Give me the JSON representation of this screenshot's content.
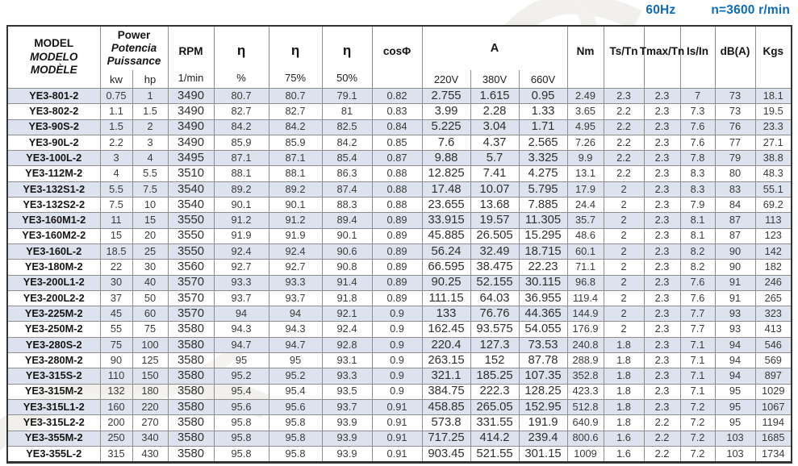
{
  "meta": {
    "frequency": "60Hz",
    "speed": "n=3600 r/min"
  },
  "colors": {
    "accent_blue": "#0b6bb7",
    "row_stripe": "#dde3ee",
    "grid_line": "#8e8e8e",
    "outer_border": "#333333"
  },
  "table": {
    "header": {
      "model_lines": [
        "MODEL",
        "MODELO",
        "MODÈLE"
      ],
      "power_lines": [
        "Power",
        "Potencia",
        "Puissance"
      ],
      "power_subs": [
        "kw",
        "hp"
      ],
      "rpm_title": "RPM",
      "rpm_sub": "1/min",
      "eta1_title": "η",
      "eta1_sub": "%",
      "eta2_title": "η",
      "eta2_sub": "75%",
      "eta3_title": "η",
      "eta3_sub": "50%",
      "cos_phi": "cosΦ",
      "current_title": "A",
      "current_subs": [
        "220V",
        "380V",
        "660V"
      ],
      "torque": "Nm",
      "ts_tn": "Ts/Tn",
      "tmax_tn": "Tmax/Tn",
      "is_in": "Is/In",
      "noise": "dB(A)",
      "weight": "Kgs"
    },
    "columns": [
      "model",
      "kw",
      "hp",
      "rpm",
      "eta_100",
      "eta_75",
      "eta_50",
      "cos_phi",
      "a_220v",
      "a_380v",
      "a_660v",
      "nm",
      "ts_tn",
      "tmax_tn",
      "is_in",
      "dba",
      "kgs"
    ],
    "rows": [
      [
        "YE3-801-2",
        "0.75",
        "1",
        "3490",
        "80.7",
        "80.7",
        "79.1",
        "0.82",
        "2.755",
        "1.615",
        "0.95",
        "2.49",
        "2.3",
        "2.3",
        "7",
        "73",
        "18.1"
      ],
      [
        "YE3-802-2",
        "1.1",
        "1.5",
        "3490",
        "82.7",
        "82.7",
        "81",
        "0.83",
        "3.99",
        "2.28",
        "1.33",
        "3.65",
        "2.2",
        "2.3",
        "7.3",
        "73",
        "19.5"
      ],
      [
        "YE3-90S-2",
        "1.5",
        "2",
        "3490",
        "84.2",
        "84.2",
        "82.5",
        "0.84",
        "5.225",
        "3.04",
        "1.71",
        "4.95",
        "2.2",
        "2.3",
        "7.6",
        "76",
        "23.3"
      ],
      [
        "YE3-90L-2",
        "2.2",
        "3",
        "3490",
        "85.9",
        "85.9",
        "84.2",
        "0.85",
        "7.6",
        "4.37",
        "2.565",
        "7.26",
        "2.2",
        "2.3",
        "7.6",
        "77",
        "27.1"
      ],
      [
        "YE3-100L-2",
        "3",
        "4",
        "3495",
        "87.1",
        "87.1",
        "85.4",
        "0.87",
        "9.88",
        "5.7",
        "3.325",
        "9.9",
        "2.2",
        "2.3",
        "7.8",
        "79",
        "38.8"
      ],
      [
        "YE3-112M-2",
        "4",
        "5.5",
        "3510",
        "88.1",
        "88.1",
        "86.3",
        "0.88",
        "12.825",
        "7.41",
        "4.275",
        "13.1",
        "2.2",
        "2.3",
        "8.3",
        "80",
        "48.3"
      ],
      [
        "YE3-132S1-2",
        "5.5",
        "7.5",
        "3540",
        "89.2",
        "89.2",
        "87.4",
        "0.88",
        "17.48",
        "10.07",
        "5.795",
        "17.9",
        "2",
        "2.3",
        "8.3",
        "83",
        "55.1"
      ],
      [
        "YE3-132S2-2",
        "7.5",
        "10",
        "3540",
        "90.1",
        "90.1",
        "88.3",
        "0.88",
        "23.655",
        "13.68",
        "7.885",
        "24.4",
        "2",
        "2.3",
        "7.9",
        "84",
        "69.2"
      ],
      [
        "YE3-160M1-2",
        "11",
        "15",
        "3550",
        "91.2",
        "91.2",
        "89.4",
        "0.89",
        "33.915",
        "19.57",
        "11.305",
        "35.7",
        "2",
        "2.3",
        "8.1",
        "87",
        "113"
      ],
      [
        "YE3-160M2-2",
        "15",
        "20",
        "3550",
        "91.9",
        "91.9",
        "90.1",
        "0.89",
        "45.885",
        "26.505",
        "15.295",
        "48.6",
        "2",
        "2.3",
        "8.1",
        "87",
        "123"
      ],
      [
        "YE3-160L-2",
        "18.5",
        "25",
        "3550",
        "92.4",
        "92.4",
        "90.6",
        "0.89",
        "56.24",
        "32.49",
        "18.715",
        "60.1",
        "2",
        "2.3",
        "8.2",
        "90",
        "142"
      ],
      [
        "YE3-180M-2",
        "22",
        "30",
        "3560",
        "92.7",
        "92.7",
        "90.8",
        "0.89",
        "66.595",
        "38.475",
        "22.23",
        "71.1",
        "2",
        "2.3",
        "8.2",
        "90",
        "182"
      ],
      [
        "YE3-200L1-2",
        "30",
        "40",
        "3570",
        "93.3",
        "93.3",
        "91.4",
        "0.89",
        "90.25",
        "52.155",
        "30.115",
        "96.8",
        "2",
        "2.3",
        "7.6",
        "91",
        "246"
      ],
      [
        "YE3-200L2-2",
        "37",
        "50",
        "3570",
        "93.7",
        "93.7",
        "91.8",
        "0.89",
        "111.15",
        "64.03",
        "36.955",
        "119.4",
        "2",
        "2.3",
        "7.6",
        "91",
        "265"
      ],
      [
        "YE3-225M-2",
        "45",
        "60",
        "3570",
        "94",
        "94",
        "92.1",
        "0.9",
        "133",
        "76.76",
        "44.365",
        "144.9",
        "2",
        "2.3",
        "7.7",
        "93",
        "323"
      ],
      [
        "YE3-250M-2",
        "55",
        "75",
        "3580",
        "94.3",
        "94.3",
        "92.4",
        "0.9",
        "162.45",
        "93.575",
        "54.055",
        "176.9",
        "2",
        "2.3",
        "7.7",
        "93",
        "413"
      ],
      [
        "YE3-280S-2",
        "75",
        "100",
        "3580",
        "94.7",
        "94.7",
        "92.8",
        "0.9",
        "220.4",
        "127.3",
        "73.53",
        "240.8",
        "1.8",
        "2.3",
        "7.1",
        "94",
        "546"
      ],
      [
        "YE3-280M-2",
        "90",
        "125",
        "3580",
        "95",
        "95",
        "93.1",
        "0.9",
        "263.15",
        "152",
        "87.78",
        "288.9",
        "1.8",
        "2.3",
        "7.1",
        "94",
        "569"
      ],
      [
        "YE3-315S-2",
        "110",
        "150",
        "3580",
        "95.2",
        "95.2",
        "93.3",
        "0.9",
        "321.1",
        "185.25",
        "107.35",
        "352.8",
        "1.8",
        "2.3",
        "7.1",
        "94",
        "897"
      ],
      [
        "YE3-315M-2",
        "132",
        "180",
        "3580",
        "95.4",
        "95.4",
        "93.5",
        "0.9",
        "384.75",
        "222.3",
        "128.25",
        "423.3",
        "1.8",
        "2.3",
        "7.1",
        "95",
        "1029"
      ],
      [
        "YE3-315L1-2",
        "160",
        "220",
        "3580",
        "95.6",
        "95.6",
        "93.7",
        "0.91",
        "458.85",
        "265.05",
        "152.95",
        "512.8",
        "1.8",
        "2.3",
        "7.2",
        "95",
        "1067"
      ],
      [
        "YE3-315L2-2",
        "200",
        "270",
        "3580",
        "95.8",
        "95.8",
        "93.9",
        "0.91",
        "573.8",
        "331.55",
        "191.9",
        "640.9",
        "1.8",
        "2.2",
        "7.2",
        "95",
        "1194"
      ],
      [
        "YE3-355M-2",
        "250",
        "340",
        "3580",
        "95.8",
        "95.8",
        "93.9",
        "0.91",
        "717.25",
        "414.2",
        "239.4",
        "800.6",
        "1.6",
        "2.2",
        "7.2",
        "103",
        "1685"
      ],
      [
        "YE3-355L-2",
        "315",
        "430",
        "3580",
        "95.8",
        "95.8",
        "93.9",
        "0.91",
        "903.45",
        "521.55",
        "301.15",
        "1009",
        "1.6",
        "2.2",
        "7.2",
        "103",
        "1734"
      ]
    ]
  }
}
